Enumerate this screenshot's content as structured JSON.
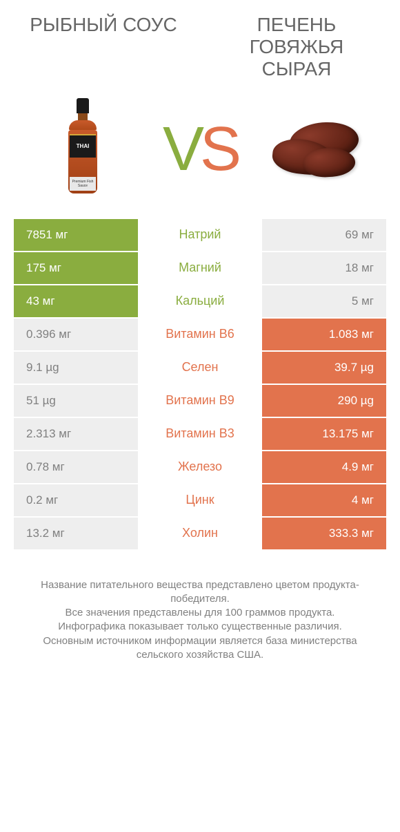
{
  "header": {
    "left_title": "РЫБНЫЙ СОУС",
    "right_title": "ПЕЧЕНЬ ГОВЯЖЬЯ СЫРАЯ",
    "vs_v": "V",
    "vs_s": "S",
    "bottle_brand": "THAI",
    "bottle_sub": "Premium Fish Sauce"
  },
  "colors": {
    "left_win": "#8aad3f",
    "right_win": "#e2734d",
    "lose_bg": "#eeeeee",
    "lose_text": "#808080",
    "title_text": "#666666"
  },
  "rows": [
    {
      "nutrient": "Натрий",
      "left": "7851 мг",
      "right": "69 мг",
      "winner": "left"
    },
    {
      "nutrient": "Магний",
      "left": "175 мг",
      "right": "18 мг",
      "winner": "left"
    },
    {
      "nutrient": "Кальций",
      "left": "43 мг",
      "right": "5 мг",
      "winner": "left"
    },
    {
      "nutrient": "Витамин B6",
      "left": "0.396 мг",
      "right": "1.083 мг",
      "winner": "right"
    },
    {
      "nutrient": "Селен",
      "left": "9.1 µg",
      "right": "39.7 µg",
      "winner": "right"
    },
    {
      "nutrient": "Витамин B9",
      "left": "51 µg",
      "right": "290 µg",
      "winner": "right"
    },
    {
      "nutrient": "Витамин B3",
      "left": "2.313 мг",
      "right": "13.175 мг",
      "winner": "right"
    },
    {
      "nutrient": "Железо",
      "left": "0.78 мг",
      "right": "4.9 мг",
      "winner": "right"
    },
    {
      "nutrient": "Цинк",
      "left": "0.2 мг",
      "right": "4 мг",
      "winner": "right"
    },
    {
      "nutrient": "Холин",
      "left": "13.2 мг",
      "right": "333.3 мг",
      "winner": "right"
    }
  ],
  "footnote": {
    "l1": "Название питательного вещества представлено цветом продукта-победителя.",
    "l2": "Все значения представлены для 100 граммов продукта.",
    "l3": "Инфографика показывает только существенные различия.",
    "l4": "Основным источником информации является база министерства сельского хозяйства США."
  }
}
